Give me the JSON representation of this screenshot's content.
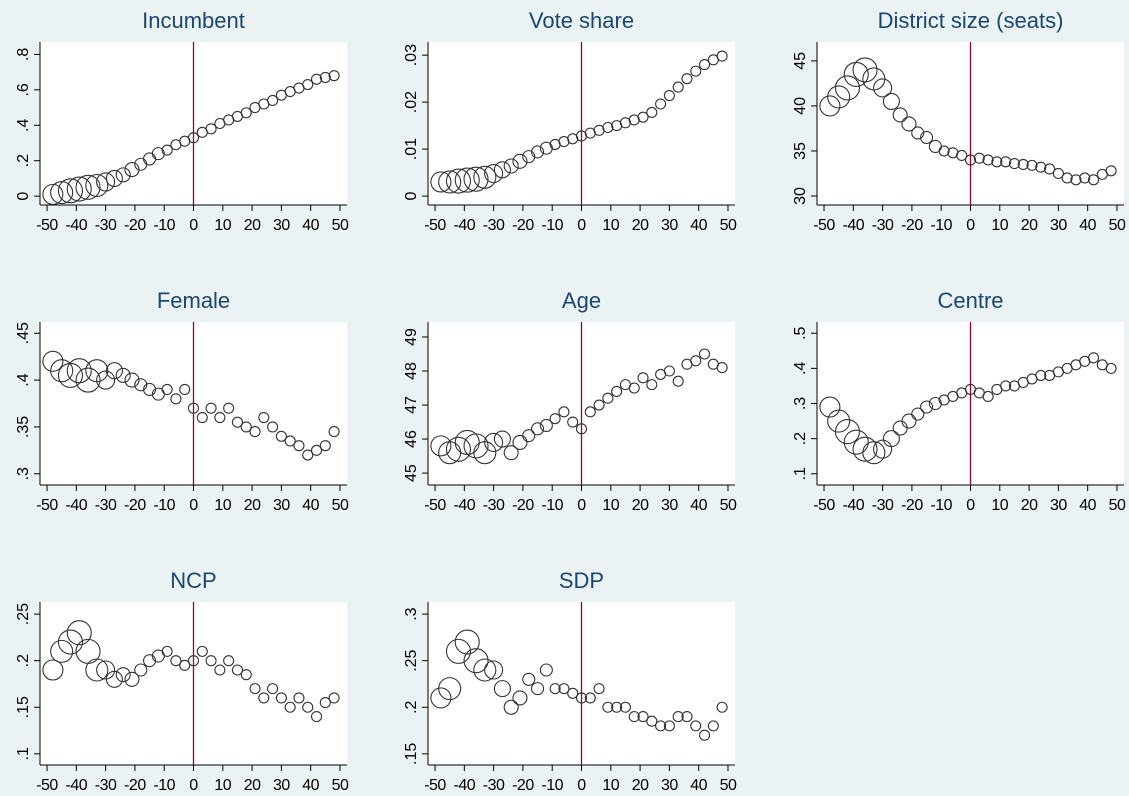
{
  "chart_data": [
    {
      "type": "scatter",
      "title": "Incumbent",
      "x": [
        -48,
        -45,
        -42,
        -39,
        -36,
        -33,
        -30,
        -27,
        -24,
        -21,
        -18,
        -15,
        -12,
        -9,
        -6,
        -3,
        0,
        3,
        6,
        9,
        12,
        15,
        18,
        21,
        24,
        27,
        30,
        33,
        36,
        39,
        42,
        45,
        48
      ],
      "values": [
        0.01,
        0.02,
        0.03,
        0.04,
        0.05,
        0.06,
        0.08,
        0.1,
        0.12,
        0.15,
        0.18,
        0.21,
        0.24,
        0.26,
        0.29,
        0.31,
        0.33,
        0.36,
        0.38,
        0.41,
        0.43,
        0.45,
        0.47,
        0.5,
        0.52,
        0.54,
        0.57,
        0.59,
        0.61,
        0.63,
        0.66,
        0.67,
        0.68
      ],
      "sizes": [
        10,
        11,
        12,
        12,
        12,
        11,
        9,
        8,
        7,
        7,
        6,
        6,
        6,
        5,
        5,
        5,
        5,
        5,
        5,
        5,
        5,
        5,
        5,
        5,
        5,
        5,
        5,
        5,
        5,
        5,
        5,
        5,
        5
      ],
      "color": "#333333",
      "xlim": [
        -52.4,
        52.4
      ],
      "xticks": [
        -50,
        -40,
        -30,
        -20,
        -10,
        0,
        10,
        20,
        30,
        40,
        50
      ],
      "ylim": [
        -0.05,
        0.87
      ],
      "yticks": [
        0,
        {
          "value": 0.2,
          "label": ".2"
        },
        {
          "value": 0.4,
          "label": ".4"
        },
        {
          "value": 0.6,
          "label": ".6"
        },
        {
          "value": 0.8,
          "label": ".8"
        }
      ],
      "vline": 0,
      "vline_color": "#990033"
    },
    {
      "type": "scatter",
      "title": "Vote share",
      "x": [
        -48,
        -45,
        -42,
        -39,
        -36,
        -33,
        -30,
        -27,
        -24,
        -21,
        -18,
        -15,
        -12,
        -9,
        -6,
        -3,
        0,
        3,
        6,
        9,
        12,
        15,
        18,
        21,
        24,
        27,
        30,
        33,
        36,
        39,
        42,
        45,
        48
      ],
      "values": [
        0.003,
        0.003,
        0.0032,
        0.0034,
        0.0036,
        0.004,
        0.0048,
        0.0056,
        0.0064,
        0.0074,
        0.0084,
        0.0094,
        0.0102,
        0.011,
        0.0116,
        0.0122,
        0.0128,
        0.0134,
        0.014,
        0.0146,
        0.015,
        0.0156,
        0.0162,
        0.0168,
        0.0178,
        0.0196,
        0.0214,
        0.0232,
        0.025,
        0.0266,
        0.028,
        0.029,
        0.0298
      ],
      "sizes": [
        10,
        11,
        12,
        12,
        12,
        11,
        9,
        8,
        7,
        7,
        6,
        6,
        6,
        5,
        5,
        5,
        5,
        5,
        5,
        5,
        5,
        5,
        5,
        5,
        5,
        5,
        5,
        5,
        5,
        5,
        5,
        5,
        5
      ],
      "color": "#333333",
      "xlim": [
        -52.4,
        52.4
      ],
      "xticks": [
        -50,
        -40,
        -30,
        -20,
        -10,
        0,
        10,
        20,
        30,
        40,
        50
      ],
      "ylim": [
        -0.0019,
        0.0328
      ],
      "yticks": [
        0,
        {
          "value": 0.01,
          "label": ".01"
        },
        {
          "value": 0.02,
          "label": ".02"
        },
        {
          "value": 0.03,
          "label": ".03"
        }
      ],
      "vline": 0,
      "vline_color": "#990033"
    },
    {
      "type": "scatter",
      "title": "District size (seats)",
      "x": [
        -48,
        -45,
        -42,
        -39,
        -36,
        -33,
        -30,
        -27,
        -24,
        -21,
        -18,
        -15,
        -12,
        -9,
        -6,
        -3,
        0,
        3,
        6,
        9,
        12,
        15,
        18,
        21,
        24,
        27,
        30,
        33,
        36,
        39,
        42,
        45,
        48
      ],
      "values": [
        40,
        41,
        42,
        43.5,
        44,
        43,
        42,
        40.5,
        39,
        38,
        37,
        36.5,
        35.5,
        35,
        34.8,
        34.5,
        34,
        34.2,
        34,
        33.8,
        33.8,
        33.6,
        33.5,
        33.4,
        33.2,
        33,
        32.5,
        32,
        31.8,
        32,
        31.8,
        32.4,
        32.8
      ],
      "sizes": [
        10,
        11,
        12,
        12,
        12,
        11,
        9,
        8,
        7,
        7,
        6,
        6,
        6,
        5,
        5,
        5,
        5,
        5,
        5,
        5,
        5,
        5,
        5,
        5,
        5,
        5,
        5,
        5,
        5,
        5,
        5,
        5,
        5
      ],
      "color": "#333333",
      "xlim": [
        -52.4,
        52.4
      ],
      "xticks": [
        -50,
        -40,
        -30,
        -20,
        -10,
        0,
        10,
        20,
        30,
        40,
        50
      ],
      "ylim": [
        29,
        47.1
      ],
      "yticks": [
        30,
        35,
        40,
        45
      ],
      "vline": 0,
      "vline_color": "#990033"
    },
    {
      "type": "scatter",
      "title": "Female",
      "x": [
        -48,
        -45,
        -42,
        -39,
        -36,
        -33,
        -30,
        -27,
        -24,
        -21,
        -18,
        -15,
        -12,
        -9,
        -6,
        -3,
        0,
        3,
        6,
        9,
        12,
        15,
        18,
        21,
        24,
        27,
        30,
        33,
        36,
        39,
        42,
        45,
        48
      ],
      "values": [
        0.42,
        0.41,
        0.405,
        0.41,
        0.4,
        0.41,
        0.4,
        0.41,
        0.405,
        0.4,
        0.395,
        0.39,
        0.385,
        0.39,
        0.38,
        0.39,
        0.37,
        0.36,
        0.37,
        0.36,
        0.37,
        0.355,
        0.35,
        0.345,
        0.36,
        0.35,
        0.34,
        0.335,
        0.33,
        0.32,
        0.325,
        0.33,
        0.345
      ],
      "sizes": [
        10,
        11,
        12,
        12,
        12,
        11,
        9,
        8,
        7,
        7,
        6,
        6,
        6,
        5,
        5,
        5,
        5,
        5,
        5,
        5,
        5,
        5,
        5,
        5,
        5,
        5,
        5,
        5,
        5,
        5,
        5,
        5,
        5
      ],
      "color": "#333333",
      "xlim": [
        -52.4,
        52.4
      ],
      "xticks": [
        -50,
        -40,
        -30,
        -20,
        -10,
        0,
        10,
        20,
        30,
        40,
        50
      ],
      "ylim": [
        0.288,
        0.462
      ],
      "yticks": [
        {
          "value": 0.3,
          "label": ".3"
        },
        {
          "value": 0.35,
          "label": ".35"
        },
        {
          "value": 0.4,
          "label": ".4"
        },
        {
          "value": 0.45,
          "label": ".45"
        }
      ],
      "vline": 0,
      "vline_color": "#990033"
    },
    {
      "type": "scatter",
      "title": "Age",
      "x": [
        -48,
        -45,
        -42,
        -39,
        -36,
        -33,
        -30,
        -27,
        -24,
        -21,
        -18,
        -15,
        -12,
        -9,
        -6,
        -3,
        0,
        3,
        6,
        9,
        12,
        15,
        18,
        21,
        24,
        27,
        30,
        33,
        36,
        39,
        42,
        45,
        48
      ],
      "values": [
        45.8,
        45.6,
        45.7,
        45.9,
        45.8,
        45.6,
        45.9,
        46.0,
        45.6,
        45.9,
        46.1,
        46.3,
        46.4,
        46.6,
        46.8,
        46.5,
        46.3,
        46.8,
        47.0,
        47.2,
        47.4,
        47.6,
        47.5,
        47.8,
        47.6,
        47.9,
        48.0,
        47.7,
        48.2,
        48.3,
        48.5,
        48.2,
        48.1
      ],
      "sizes": [
        10,
        11,
        12,
        12,
        12,
        11,
        9,
        8,
        7,
        7,
        6,
        6,
        6,
        5,
        5,
        5,
        5,
        5,
        5,
        5,
        5,
        5,
        5,
        5,
        5,
        5,
        5,
        5,
        5,
        5,
        5,
        5,
        5
      ],
      "color": "#333333",
      "xlim": [
        -52.4,
        52.4
      ],
      "xticks": [
        -50,
        -40,
        -30,
        -20,
        -10,
        0,
        10,
        20,
        30,
        40,
        50
      ],
      "ylim": [
        44.65,
        49.44
      ],
      "yticks": [
        45,
        46,
        47,
        48,
        49
      ],
      "vline": 0,
      "vline_color": "#990033"
    },
    {
      "type": "scatter",
      "title": "Centre",
      "x": [
        -48,
        -45,
        -42,
        -39,
        -36,
        -33,
        -30,
        -27,
        -24,
        -21,
        -18,
        -15,
        -12,
        -9,
        -6,
        -3,
        0,
        3,
        6,
        9,
        12,
        15,
        18,
        21,
        24,
        27,
        30,
        33,
        36,
        39,
        42,
        45,
        48
      ],
      "values": [
        0.29,
        0.25,
        0.22,
        0.19,
        0.17,
        0.16,
        0.17,
        0.2,
        0.23,
        0.25,
        0.27,
        0.29,
        0.3,
        0.31,
        0.32,
        0.33,
        0.34,
        0.33,
        0.32,
        0.34,
        0.35,
        0.35,
        0.36,
        0.37,
        0.38,
        0.38,
        0.39,
        0.4,
        0.41,
        0.42,
        0.43,
        0.41,
        0.4
      ],
      "sizes": [
        10,
        11,
        12,
        12,
        12,
        11,
        9,
        8,
        7,
        7,
        6,
        6,
        6,
        5,
        5,
        5,
        5,
        5,
        5,
        5,
        5,
        5,
        5,
        5,
        5,
        5,
        5,
        5,
        5,
        5,
        5,
        5,
        5
      ],
      "color": "#333333",
      "xlim": [
        -52.4,
        52.4
      ],
      "xticks": [
        -50,
        -40,
        -30,
        -20,
        -10,
        0,
        10,
        20,
        30,
        40,
        50
      ],
      "ylim": [
        0.068,
        0.532
      ],
      "yticks": [
        {
          "value": 0.1,
          "label": ".1"
        },
        {
          "value": 0.2,
          "label": ".2"
        },
        {
          "value": 0.3,
          "label": ".3"
        },
        {
          "value": 0.4,
          "label": ".4"
        },
        {
          "value": 0.5,
          "label": ".5"
        }
      ],
      "vline": 0,
      "vline_color": "#990033"
    },
    {
      "type": "scatter",
      "title": "NCP",
      "x": [
        -48,
        -45,
        -42,
        -39,
        -36,
        -33,
        -30,
        -27,
        -24,
        -21,
        -18,
        -15,
        -12,
        -9,
        -6,
        -3,
        0,
        3,
        6,
        9,
        12,
        15,
        18,
        21,
        24,
        27,
        30,
        33,
        36,
        39,
        42,
        45,
        48
      ],
      "values": [
        0.19,
        0.21,
        0.22,
        0.23,
        0.21,
        0.19,
        0.19,
        0.18,
        0.185,
        0.18,
        0.19,
        0.2,
        0.205,
        0.21,
        0.2,
        0.195,
        0.2,
        0.21,
        0.2,
        0.19,
        0.2,
        0.19,
        0.185,
        0.17,
        0.16,
        0.17,
        0.16,
        0.15,
        0.16,
        0.15,
        0.14,
        0.155,
        0.16
      ],
      "sizes": [
        10,
        11,
        12,
        12,
        12,
        11,
        9,
        8,
        7,
        7,
        6,
        6,
        6,
        5,
        5,
        5,
        5,
        5,
        5,
        5,
        5,
        5,
        5,
        5,
        5,
        5,
        5,
        5,
        5,
        5,
        5,
        5,
        5
      ],
      "color": "#333333",
      "xlim": [
        -52.4,
        52.4
      ],
      "xticks": [
        -50,
        -40,
        -30,
        -20,
        -10,
        0,
        10,
        20,
        30,
        40,
        50
      ],
      "ylim": [
        0.088,
        0.263
      ],
      "yticks": [
        {
          "value": 0.1,
          "label": ".1"
        },
        {
          "value": 0.15,
          "label": ".15"
        },
        {
          "value": 0.2,
          "label": ".2"
        },
        {
          "value": 0.25,
          "label": ".25"
        }
      ],
      "vline": 0,
      "vline_color": "#990033"
    },
    {
      "type": "scatter",
      "title": "SDP",
      "x": [
        -48,
        -45,
        -42,
        -39,
        -36,
        -33,
        -30,
        -27,
        -24,
        -21,
        -18,
        -15,
        -12,
        -9,
        -6,
        -3,
        0,
        3,
        6,
        9,
        12,
        15,
        18,
        21,
        24,
        27,
        30,
        33,
        36,
        39,
        42,
        45,
        48
      ],
      "values": [
        0.21,
        0.22,
        0.26,
        0.27,
        0.25,
        0.24,
        0.24,
        0.22,
        0.2,
        0.21,
        0.23,
        0.22,
        0.24,
        0.22,
        0.22,
        0.215,
        0.21,
        0.21,
        0.22,
        0.2,
        0.2,
        0.2,
        0.19,
        0.19,
        0.185,
        0.18,
        0.18,
        0.19,
        0.19,
        0.18,
        0.17,
        0.18,
        0.2
      ],
      "sizes": [
        10,
        11,
        12,
        12,
        12,
        11,
        9,
        8,
        7,
        7,
        6,
        6,
        6,
        5,
        5,
        5,
        5,
        5,
        5,
        5,
        5,
        5,
        5,
        5,
        5,
        5,
        5,
        5,
        5,
        5,
        5,
        5,
        5
      ],
      "color": "#333333",
      "xlim": [
        -52.4,
        52.4
      ],
      "xticks": [
        -50,
        -40,
        -30,
        -20,
        -10,
        0,
        10,
        20,
        30,
        40,
        50
      ],
      "ylim": [
        0.138,
        0.313
      ],
      "yticks": [
        {
          "value": 0.15,
          "label": ".15"
        },
        {
          "value": 0.2,
          "label": ".2"
        },
        {
          "value": 0.25,
          "label": ".25"
        },
        {
          "value": 0.3,
          "label": ".3"
        }
      ],
      "vline": 0,
      "vline_color": "#990033"
    }
  ]
}
